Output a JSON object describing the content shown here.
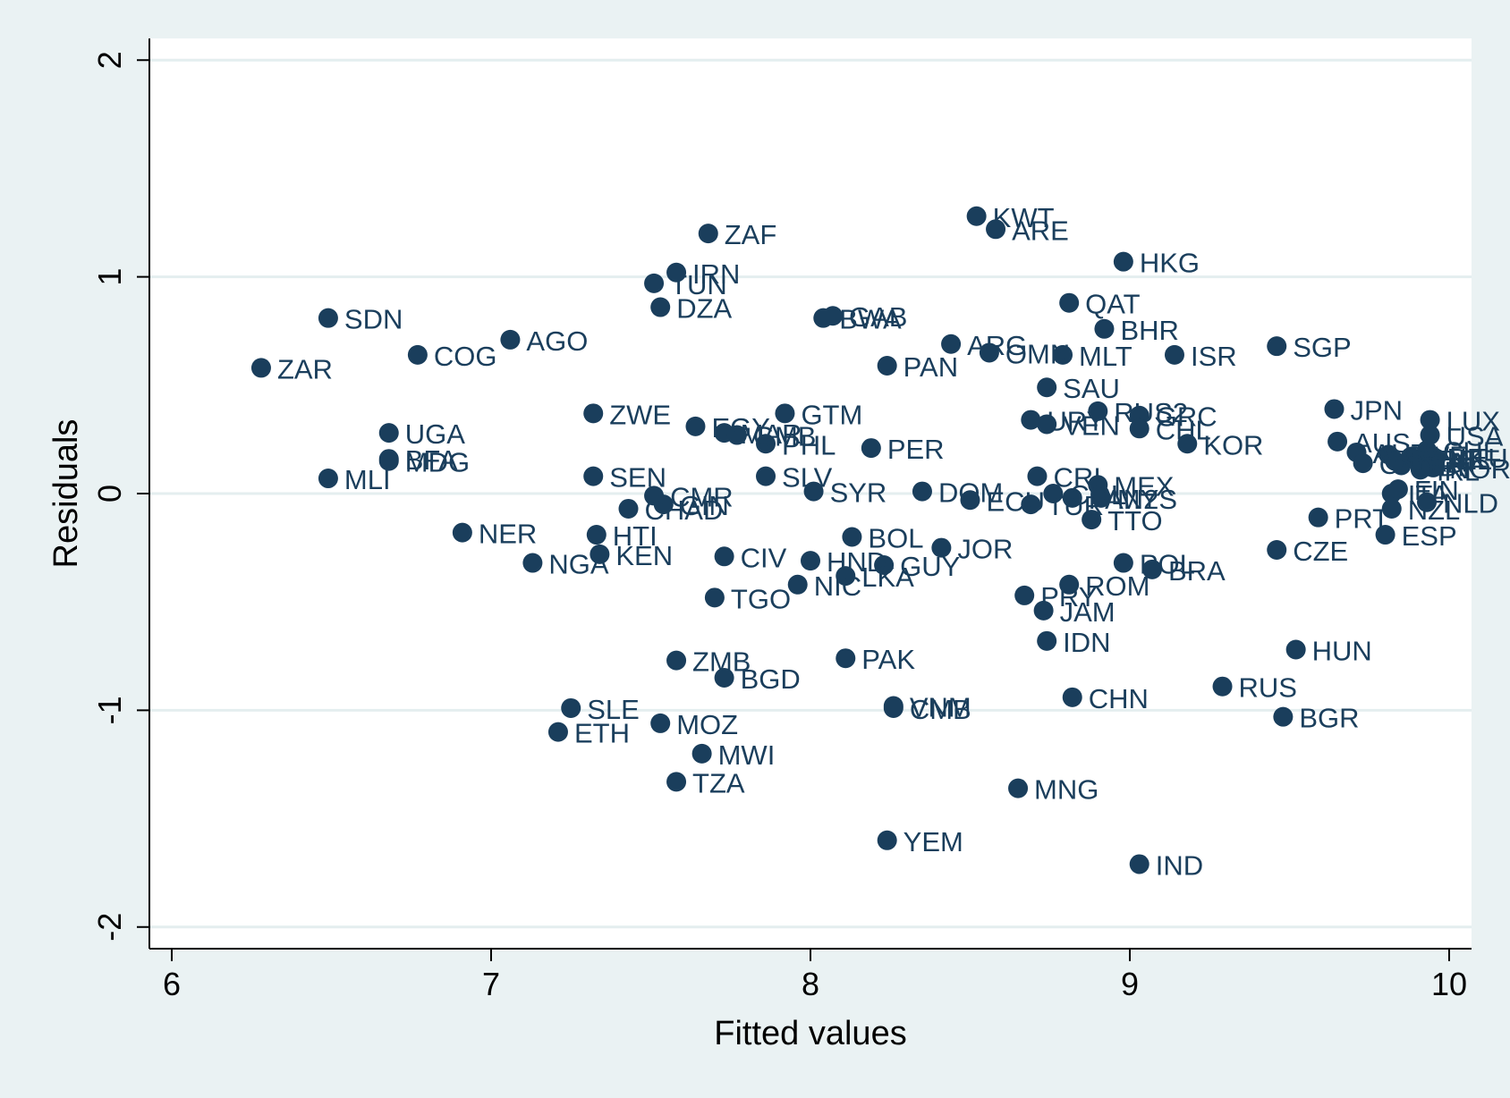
{
  "chart_data": {
    "type": "scatter",
    "title": "",
    "xlabel": "Fitted values",
    "ylabel": "Residuals",
    "xlim": [
      5.93,
      10.07
    ],
    "ylim": [
      -2.1,
      2.1
    ],
    "xticks": [
      6,
      7,
      8,
      9,
      10
    ],
    "yticks": [
      -2,
      -1,
      0,
      1,
      2
    ],
    "xtick_labels": [
      "6",
      "7",
      "8",
      "9",
      "10"
    ],
    "ytick_labels": [
      "-2",
      "-1",
      "0",
      "1",
      "2"
    ],
    "grid": "horizontal",
    "legend": "none",
    "marker_color": "#1a3e5c",
    "plot_background": "#ffffff",
    "page_background": "#eaf2f3",
    "grid_color": "#e4eeef",
    "points": [
      {
        "label": "ZAR",
        "x": 6.28,
        "y": 0.58
      },
      {
        "label": "SDN",
        "x": 6.49,
        "y": 0.81
      },
      {
        "label": "MLI",
        "x": 6.49,
        "y": 0.07
      },
      {
        "label": "UGA",
        "x": 6.68,
        "y": 0.28
      },
      {
        "label": "BFA",
        "x": 6.68,
        "y": 0.16
      },
      {
        "label": "MDG",
        "x": 6.68,
        "y": 0.15
      },
      {
        "label": "COG",
        "x": 6.77,
        "y": 0.64
      },
      {
        "label": "NER",
        "x": 6.91,
        "y": -0.18
      },
      {
        "label": "AGO",
        "x": 7.06,
        "y": 0.71
      },
      {
        "label": "NGA",
        "x": 7.13,
        "y": -0.32
      },
      {
        "label": "ETH",
        "x": 7.21,
        "y": -1.1
      },
      {
        "label": "SLE",
        "x": 7.25,
        "y": -0.99
      },
      {
        "label": "ZWE",
        "x": 7.32,
        "y": 0.37
      },
      {
        "label": "SEN",
        "x": 7.32,
        "y": 0.08
      },
      {
        "label": "HTI",
        "x": 7.33,
        "y": -0.19
      },
      {
        "label": "KEN",
        "x": 7.34,
        "y": -0.28
      },
      {
        "label": "CHAD",
        "x": 7.43,
        "y": -0.07
      },
      {
        "label": "TUN",
        "x": 7.51,
        "y": 0.97
      },
      {
        "label": "CMR",
        "x": 7.51,
        "y": -0.01
      },
      {
        "label": "GIN",
        "x": 7.54,
        "y": -0.05
      },
      {
        "label": "DZA",
        "x": 7.53,
        "y": 0.86
      },
      {
        "label": "MOZ",
        "x": 7.53,
        "y": -1.06
      },
      {
        "label": "IRN",
        "x": 7.58,
        "y": 1.02
      },
      {
        "label": "ZMB",
        "x": 7.58,
        "y": -0.77
      },
      {
        "label": "TZA",
        "x": 7.58,
        "y": -1.33
      },
      {
        "label": "EGY",
        "x": 7.64,
        "y": 0.31
      },
      {
        "label": "MWI",
        "x": 7.66,
        "y": -1.2
      },
      {
        "label": "ZAF",
        "x": 7.68,
        "y": 1.2
      },
      {
        "label": "TGO",
        "x": 7.7,
        "y": -0.48
      },
      {
        "label": "MAR",
        "x": 7.73,
        "y": 0.28
      },
      {
        "label": "CIV",
        "x": 7.73,
        "y": -0.29
      },
      {
        "label": "BGD",
        "x": 7.73,
        "y": -0.85
      },
      {
        "label": "GMB",
        "x": 7.77,
        "y": 0.27
      },
      {
        "label": "PHL",
        "x": 7.86,
        "y": 0.23
      },
      {
        "label": "SLV",
        "x": 7.86,
        "y": 0.08
      },
      {
        "label": "GTM",
        "x": 7.92,
        "y": 0.37
      },
      {
        "label": "NIC",
        "x": 7.96,
        "y": -0.42
      },
      {
        "label": "HND",
        "x": 8.0,
        "y": -0.31
      },
      {
        "label": "SYR",
        "x": 8.01,
        "y": 0.01
      },
      {
        "label": "BWA",
        "x": 8.04,
        "y": 0.81
      },
      {
        "label": "GAB",
        "x": 8.07,
        "y": 0.82
      },
      {
        "label": "LKA",
        "x": 8.11,
        "y": -0.38
      },
      {
        "label": "PAK",
        "x": 8.11,
        "y": -0.76
      },
      {
        "label": "BOL",
        "x": 8.13,
        "y": -0.2
      },
      {
        "label": "PER",
        "x": 8.19,
        "y": 0.21
      },
      {
        "label": "GUY",
        "x": 8.23,
        "y": -0.33
      },
      {
        "label": "PAN",
        "x": 8.24,
        "y": 0.59
      },
      {
        "label": "YEM",
        "x": 8.24,
        "y": -1.6
      },
      {
        "label": "VNM",
        "x": 8.26,
        "y": -0.98
      },
      {
        "label": "CMB",
        "x": 8.26,
        "y": -0.99
      },
      {
        "label": "DOM",
        "x": 8.35,
        "y": 0.01
      },
      {
        "label": "JOR",
        "x": 8.41,
        "y": -0.25
      },
      {
        "label": "ARG",
        "x": 8.44,
        "y": 0.69
      },
      {
        "label": "ECU",
        "x": 8.5,
        "y": -0.03
      },
      {
        "label": "KWT",
        "x": 8.52,
        "y": 1.28
      },
      {
        "label": "OMN",
        "x": 8.56,
        "y": 0.65
      },
      {
        "label": "ARE",
        "x": 8.58,
        "y": 1.22
      },
      {
        "label": "MNG",
        "x": 8.65,
        "y": -1.36
      },
      {
        "label": "PRY",
        "x": 8.67,
        "y": -0.47
      },
      {
        "label": "URY",
        "x": 8.69,
        "y": 0.34
      },
      {
        "label": "TUR",
        "x": 8.69,
        "y": -0.05
      },
      {
        "label": "CRI",
        "x": 8.71,
        "y": 0.08
      },
      {
        "label": "JAM",
        "x": 8.73,
        "y": -0.54
      },
      {
        "label": "SAU",
        "x": 8.74,
        "y": 0.49
      },
      {
        "label": "VEN",
        "x": 8.74,
        "y": 0.32
      },
      {
        "label": "IDN",
        "x": 8.74,
        "y": -0.68
      },
      {
        "label": "COL",
        "x": 8.76,
        "y": 0.0
      },
      {
        "label": "MLT",
        "x": 8.79,
        "y": 0.64
      },
      {
        "label": "QAT",
        "x": 8.81,
        "y": 0.88
      },
      {
        "label": "ROM",
        "x": 8.81,
        "y": -0.42
      },
      {
        "label": "PAN2",
        "x": 8.82,
        "y": -0.02
      },
      {
        "label": "CHN",
        "x": 8.82,
        "y": -0.94
      },
      {
        "label": "TTO",
        "x": 8.88,
        "y": -0.12
      },
      {
        "label": "RUS2",
        "x": 8.9,
        "y": 0.38
      },
      {
        "label": "MEX",
        "x": 8.9,
        "y": 0.04
      },
      {
        "label": "MYS",
        "x": 8.91,
        "y": -0.02
      },
      {
        "label": "BHR",
        "x": 8.92,
        "y": 0.76
      },
      {
        "label": "HKG",
        "x": 8.98,
        "y": 1.07
      },
      {
        "label": "POL",
        "x": 8.98,
        "y": -0.32
      },
      {
        "label": "GRC",
        "x": 9.03,
        "y": 0.36
      },
      {
        "label": "CHL",
        "x": 9.03,
        "y": 0.3
      },
      {
        "label": "IND",
        "x": 9.03,
        "y": -1.71
      },
      {
        "label": "BRA",
        "x": 9.07,
        "y": -0.35
      },
      {
        "label": "ISR",
        "x": 9.14,
        "y": 0.64
      },
      {
        "label": "KOR",
        "x": 9.18,
        "y": 0.23
      },
      {
        "label": "RUS",
        "x": 9.29,
        "y": -0.89
      },
      {
        "label": "SGP",
        "x": 9.46,
        "y": 0.68
      },
      {
        "label": "CZE",
        "x": 9.46,
        "y": -0.26
      },
      {
        "label": "BGR",
        "x": 9.48,
        "y": -1.03
      },
      {
        "label": "HUN",
        "x": 9.52,
        "y": -0.72
      },
      {
        "label": "PRT",
        "x": 9.59,
        "y": -0.11
      },
      {
        "label": "JPN",
        "x": 9.64,
        "y": 0.39
      },
      {
        "label": "AUS",
        "x": 9.65,
        "y": 0.24
      },
      {
        "label": "AUT",
        "x": 9.71,
        "y": 0.19
      },
      {
        "label": "CAN",
        "x": 9.73,
        "y": 0.14
      },
      {
        "label": "ESP",
        "x": 9.8,
        "y": -0.19
      },
      {
        "label": "SWE",
        "x": 9.81,
        "y": 0.18
      },
      {
        "label": "ITA",
        "x": 9.82,
        "y": 0.0
      },
      {
        "label": "NZL",
        "x": 9.82,
        "y": -0.07
      },
      {
        "label": "FIN",
        "x": 9.84,
        "y": 0.02
      },
      {
        "label": "FRA",
        "x": 9.83,
        "y": 0.15
      },
      {
        "label": "GBR",
        "x": 9.85,
        "y": 0.13
      },
      {
        "label": "DNK",
        "x": 9.88,
        "y": 0.17
      },
      {
        "label": "IRL",
        "x": 9.91,
        "y": 0.11
      },
      {
        "label": "BEL",
        "x": 9.92,
        "y": 0.16
      },
      {
        "label": "CHE",
        "x": 9.93,
        "y": 0.2
      },
      {
        "label": "DEU",
        "x": 9.95,
        "y": 0.17
      },
      {
        "label": "NOR",
        "x": 9.95,
        "y": 0.12
      },
      {
        "label": "USA",
        "x": 9.94,
        "y": 0.27
      },
      {
        "label": "LUX",
        "x": 9.94,
        "y": 0.34
      },
      {
        "label": "NLD",
        "x": 9.93,
        "y": -0.04
      }
    ]
  }
}
